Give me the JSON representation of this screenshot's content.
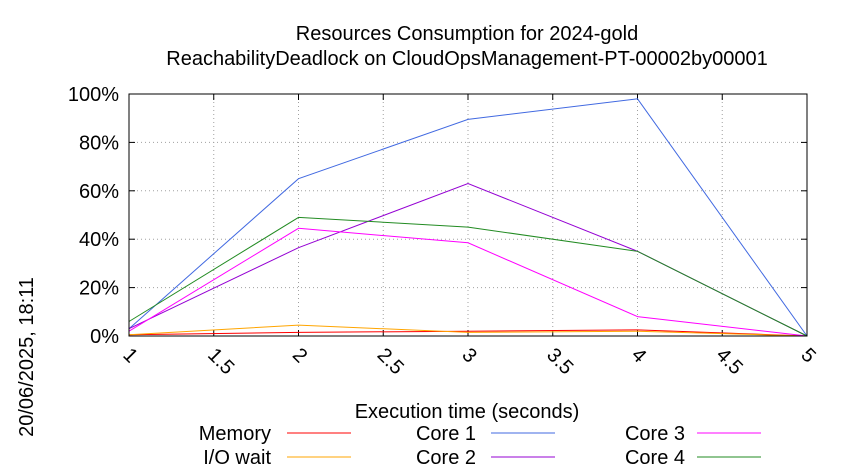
{
  "chart_data": {
    "type": "line",
    "title": "Resources Consumption for 2024-gold",
    "subtitle": "ReachabilityDeadlock on CloudOpsManagement-PT-00002by00001",
    "xlabel": "Execution time (seconds)",
    "ylabel": "",
    "side_label": "20/06/2025, 18:11",
    "xlim": [
      1,
      5
    ],
    "ylim": [
      0,
      100
    ],
    "x_ticks": [
      "1",
      "1.5",
      "2",
      "2.5",
      "3",
      "3.5",
      "4",
      "4.5",
      "5"
    ],
    "y_ticks": [
      "0%",
      "20%",
      "40%",
      "60%",
      "80%",
      "100%"
    ],
    "grid": true,
    "legend_position": "bottom",
    "x": [
      1,
      2,
      3,
      4,
      5
    ],
    "series": [
      {
        "name": "Memory",
        "color": "#ff0000",
        "values": [
          0.5,
          1.5,
          2,
          2.5,
          0
        ]
      },
      {
        "name": "I/O wait",
        "color": "#ffa500",
        "values": [
          0.5,
          4.5,
          1.5,
          2,
          0
        ]
      },
      {
        "name": "Core 1",
        "color": "#4169e1",
        "values": [
          3,
          65,
          89.5,
          98,
          0
        ]
      },
      {
        "name": "Core 2",
        "color": "#9400d3",
        "values": [
          3,
          36.5,
          63,
          35,
          0
        ]
      },
      {
        "name": "Core 3",
        "color": "#ff00ff",
        "values": [
          2,
          44.5,
          38.5,
          8,
          0
        ]
      },
      {
        "name": "Core 4",
        "color": "#228b22",
        "values": [
          6,
          49,
          45,
          35,
          0
        ]
      }
    ]
  }
}
